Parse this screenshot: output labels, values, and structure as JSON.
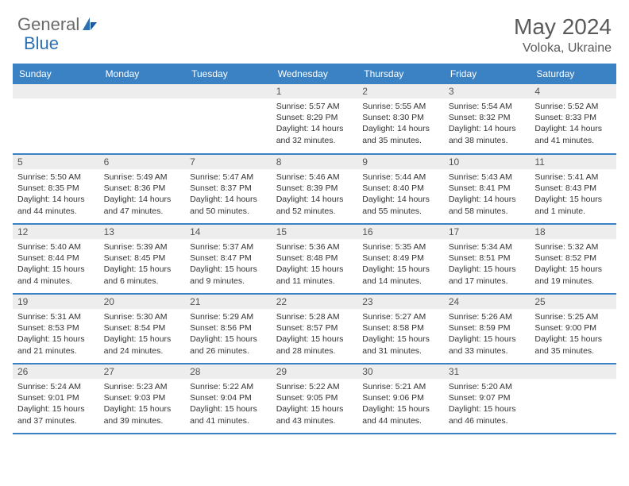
{
  "brand": {
    "name1": "General",
    "name2": "Blue"
  },
  "title": "May 2024",
  "location": "Voloka, Ukraine",
  "colors": {
    "header_bg": "#3b82c4",
    "header_text": "#ffffff",
    "daynum_bg": "#ededed",
    "border": "#3b82c4",
    "text": "#333333",
    "title": "#5a5a5a",
    "logo_gray": "#6a6a6a",
    "logo_blue": "#2c6fb3"
  },
  "dayNames": [
    "Sunday",
    "Monday",
    "Tuesday",
    "Wednesday",
    "Thursday",
    "Friday",
    "Saturday"
  ],
  "weeks": [
    [
      {
        "n": "",
        "sr": "",
        "ss": "",
        "dl": ""
      },
      {
        "n": "",
        "sr": "",
        "ss": "",
        "dl": ""
      },
      {
        "n": "",
        "sr": "",
        "ss": "",
        "dl": ""
      },
      {
        "n": "1",
        "sr": "5:57 AM",
        "ss": "8:29 PM",
        "dl": "14 hours and 32 minutes."
      },
      {
        "n": "2",
        "sr": "5:55 AM",
        "ss": "8:30 PM",
        "dl": "14 hours and 35 minutes."
      },
      {
        "n": "3",
        "sr": "5:54 AM",
        "ss": "8:32 PM",
        "dl": "14 hours and 38 minutes."
      },
      {
        "n": "4",
        "sr": "5:52 AM",
        "ss": "8:33 PM",
        "dl": "14 hours and 41 minutes."
      }
    ],
    [
      {
        "n": "5",
        "sr": "5:50 AM",
        "ss": "8:35 PM",
        "dl": "14 hours and 44 minutes."
      },
      {
        "n": "6",
        "sr": "5:49 AM",
        "ss": "8:36 PM",
        "dl": "14 hours and 47 minutes."
      },
      {
        "n": "7",
        "sr": "5:47 AM",
        "ss": "8:37 PM",
        "dl": "14 hours and 50 minutes."
      },
      {
        "n": "8",
        "sr": "5:46 AM",
        "ss": "8:39 PM",
        "dl": "14 hours and 52 minutes."
      },
      {
        "n": "9",
        "sr": "5:44 AM",
        "ss": "8:40 PM",
        "dl": "14 hours and 55 minutes."
      },
      {
        "n": "10",
        "sr": "5:43 AM",
        "ss": "8:41 PM",
        "dl": "14 hours and 58 minutes."
      },
      {
        "n": "11",
        "sr": "5:41 AM",
        "ss": "8:43 PM",
        "dl": "15 hours and 1 minute."
      }
    ],
    [
      {
        "n": "12",
        "sr": "5:40 AM",
        "ss": "8:44 PM",
        "dl": "15 hours and 4 minutes."
      },
      {
        "n": "13",
        "sr": "5:39 AM",
        "ss": "8:45 PM",
        "dl": "15 hours and 6 minutes."
      },
      {
        "n": "14",
        "sr": "5:37 AM",
        "ss": "8:47 PM",
        "dl": "15 hours and 9 minutes."
      },
      {
        "n": "15",
        "sr": "5:36 AM",
        "ss": "8:48 PM",
        "dl": "15 hours and 11 minutes."
      },
      {
        "n": "16",
        "sr": "5:35 AM",
        "ss": "8:49 PM",
        "dl": "15 hours and 14 minutes."
      },
      {
        "n": "17",
        "sr": "5:34 AM",
        "ss": "8:51 PM",
        "dl": "15 hours and 17 minutes."
      },
      {
        "n": "18",
        "sr": "5:32 AM",
        "ss": "8:52 PM",
        "dl": "15 hours and 19 minutes."
      }
    ],
    [
      {
        "n": "19",
        "sr": "5:31 AM",
        "ss": "8:53 PM",
        "dl": "15 hours and 21 minutes."
      },
      {
        "n": "20",
        "sr": "5:30 AM",
        "ss": "8:54 PM",
        "dl": "15 hours and 24 minutes."
      },
      {
        "n": "21",
        "sr": "5:29 AM",
        "ss": "8:56 PM",
        "dl": "15 hours and 26 minutes."
      },
      {
        "n": "22",
        "sr": "5:28 AM",
        "ss": "8:57 PM",
        "dl": "15 hours and 28 minutes."
      },
      {
        "n": "23",
        "sr": "5:27 AM",
        "ss": "8:58 PM",
        "dl": "15 hours and 31 minutes."
      },
      {
        "n": "24",
        "sr": "5:26 AM",
        "ss": "8:59 PM",
        "dl": "15 hours and 33 minutes."
      },
      {
        "n": "25",
        "sr": "5:25 AM",
        "ss": "9:00 PM",
        "dl": "15 hours and 35 minutes."
      }
    ],
    [
      {
        "n": "26",
        "sr": "5:24 AM",
        "ss": "9:01 PM",
        "dl": "15 hours and 37 minutes."
      },
      {
        "n": "27",
        "sr": "5:23 AM",
        "ss": "9:03 PM",
        "dl": "15 hours and 39 minutes."
      },
      {
        "n": "28",
        "sr": "5:22 AM",
        "ss": "9:04 PM",
        "dl": "15 hours and 41 minutes."
      },
      {
        "n": "29",
        "sr": "5:22 AM",
        "ss": "9:05 PM",
        "dl": "15 hours and 43 minutes."
      },
      {
        "n": "30",
        "sr": "5:21 AM",
        "ss": "9:06 PM",
        "dl": "15 hours and 44 minutes."
      },
      {
        "n": "31",
        "sr": "5:20 AM",
        "ss": "9:07 PM",
        "dl": "15 hours and 46 minutes."
      },
      {
        "n": "",
        "sr": "",
        "ss": "",
        "dl": ""
      }
    ]
  ],
  "labels": {
    "sunrise": "Sunrise:",
    "sunset": "Sunset:",
    "daylight": "Daylight:"
  }
}
